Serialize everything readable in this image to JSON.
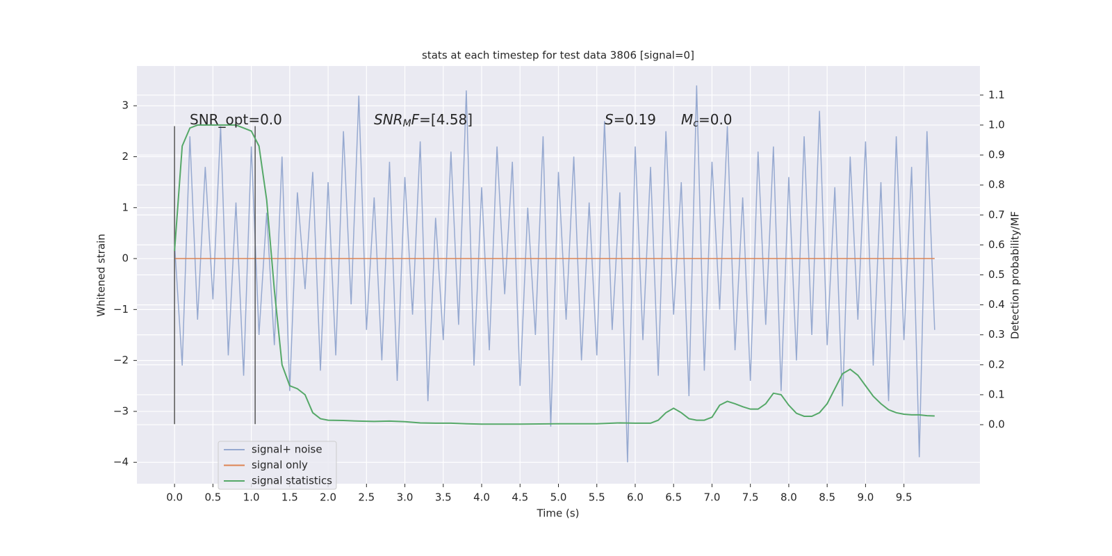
{
  "chart_data": {
    "type": "line",
    "title": "stats at each timestep for test data 3806 [signal=0]",
    "xlabel": "Time (s)",
    "ylabel": "Whitened strain",
    "y2label": "Detection probability/MF",
    "grid": true,
    "legend": "lower left",
    "xlim": [
      -0.49,
      10.49
    ],
    "ylim": [
      -4.42,
      3.78
    ],
    "y2lim": [
      -0.197,
      1.197
    ],
    "xticks": [
      {
        "value": 0,
        "label": "0.0"
      },
      {
        "value": 0.5,
        "label": "0.5"
      },
      {
        "value": 1,
        "label": "1.0"
      },
      {
        "value": 1.5,
        "label": "1.5"
      },
      {
        "value": 2,
        "label": "2.0"
      },
      {
        "value": 2.5,
        "label": "2.5"
      },
      {
        "value": 3,
        "label": "3.0"
      },
      {
        "value": 3.5,
        "label": "3.5"
      },
      {
        "value": 4,
        "label": "4.0"
      },
      {
        "value": 4.5,
        "label": "4.5"
      },
      {
        "value": 5,
        "label": "5.0"
      },
      {
        "value": 5.5,
        "label": "5.5"
      },
      {
        "value": 6,
        "label": "6.0"
      },
      {
        "value": 6.5,
        "label": "6.5"
      },
      {
        "value": 7,
        "label": "7.0"
      },
      {
        "value": 7.5,
        "label": "7.5"
      },
      {
        "value": 8,
        "label": "8.0"
      },
      {
        "value": 8.5,
        "label": "8.5"
      },
      {
        "value": 9,
        "label": "9.0"
      },
      {
        "value": 9.5,
        "label": "9.5"
      }
    ],
    "yticks": [
      {
        "value": -4,
        "label": "−4"
      },
      {
        "value": -3,
        "label": "−3"
      },
      {
        "value": -2,
        "label": "−2"
      },
      {
        "value": -1,
        "label": "−1"
      },
      0,
      1,
      2,
      3
    ],
    "y2ticks": [
      {
        "value": 0,
        "label": "0.0"
      },
      0.1,
      0.2,
      0.3,
      0.4,
      0.5,
      0.6,
      0.7,
      0.8,
      0.9,
      {
        "value": 1,
        "label": "1.0"
      },
      1.1
    ],
    "annotations": [
      [
        {
          "text": "SNR_opt=0.0"
        }
      ],
      [
        {
          "text": "SNR",
          "italic": true
        },
        {
          "text": "M",
          "italic": true,
          "sub": true
        },
        {
          "text": "F",
          "italic": true
        },
        {
          "text": "=[4.58]"
        }
      ],
      [
        {
          "text": "S",
          "italic": true
        },
        {
          "text": "=0.19"
        }
      ],
      [
        {
          "text": "M",
          "italic": true
        },
        {
          "text": "c",
          "italic": true,
          "sub": true
        },
        {
          "text": "=0.0"
        }
      ]
    ],
    "markers": {
      "x": [
        0,
        1.05
      ],
      "ymin": -3.25,
      "ymax": 2.6,
      "color": "#555555"
    },
    "x": [
      0.0,
      0.1,
      0.2,
      0.3,
      0.4,
      0.5,
      0.6,
      0.7,
      0.8,
      0.9,
      1.0,
      1.1,
      1.2,
      1.3,
      1.4,
      1.5,
      1.6,
      1.7,
      1.8,
      1.9,
      2.0,
      2.1,
      2.2,
      2.3,
      2.4,
      2.5,
      2.6,
      2.7,
      2.8,
      2.9,
      3.0,
      3.1,
      3.2,
      3.3,
      3.4,
      3.5,
      3.6,
      3.7,
      3.8,
      3.9,
      4.0,
      4.1,
      4.2,
      4.3,
      4.4,
      4.5,
      4.6,
      4.7,
      4.8,
      4.9,
      5.0,
      5.1,
      5.2,
      5.3,
      5.4,
      5.5,
      5.6,
      5.7,
      5.8,
      5.9,
      6.0,
      6.1,
      6.2,
      6.3,
      6.4,
      6.5,
      6.6,
      6.7,
      6.8,
      6.9,
      7.0,
      7.1,
      7.2,
      7.3,
      7.4,
      7.5,
      7.6,
      7.7,
      7.8,
      7.9,
      8.0,
      8.1,
      8.2,
      8.3,
      8.4,
      8.5,
      8.6,
      8.7,
      8.8,
      8.9,
      9.0,
      9.1,
      9.2,
      9.3,
      9.4,
      9.5,
      9.6,
      9.7,
      9.8,
      9.9
    ],
    "series": [
      {
        "name": "signal+ noise",
        "color": "#96a9d0",
        "values": [
          0.3,
          -2.1,
          2.4,
          -1.2,
          1.8,
          -0.8,
          2.6,
          -1.9,
          1.1,
          -2.3,
          2.2,
          -1.5,
          0.9,
          -1.7,
          2.0,
          -2.6,
          1.3,
          -0.6,
          1.7,
          -2.2,
          1.5,
          -1.9,
          2.5,
          -0.9,
          3.2,
          -1.4,
          1.2,
          -2.0,
          1.9,
          -2.4,
          1.6,
          -1.1,
          2.3,
          -2.8,
          0.8,
          -1.6,
          2.1,
          -1.3,
          3.3,
          -2.1,
          1.4,
          -1.8,
          2.2,
          -0.7,
          1.9,
          -2.5,
          1.0,
          -1.5,
          2.4,
          -3.3,
          1.7,
          -1.2,
          2.0,
          -2.0,
          1.1,
          -1.9,
          2.7,
          -1.4,
          1.3,
          -4.0,
          2.2,
          -1.6,
          1.8,
          -2.3,
          2.5,
          -1.1,
          1.5,
          -2.7,
          3.4,
          -2.2,
          1.9,
          -1.0,
          2.6,
          -1.8,
          1.2,
          -2.4,
          2.1,
          -1.3,
          2.2,
          -2.6,
          1.6,
          -2.0,
          2.4,
          -1.5,
          2.9,
          -1.7,
          1.4,
          -2.9,
          2.0,
          -1.2,
          2.3,
          -2.1,
          1.5,
          -2.8,
          2.4,
          -1.6,
          1.8,
          -3.9,
          2.5,
          -1.4
        ]
      },
      {
        "name": "signal only",
        "color": "#dd8452",
        "values": [
          0,
          0,
          0,
          0,
          0,
          0,
          0,
          0,
          0,
          0,
          0,
          0,
          0,
          0,
          0,
          0,
          0,
          0,
          0,
          0,
          0,
          0,
          0,
          0,
          0,
          0,
          0,
          0,
          0,
          0,
          0,
          0,
          0,
          0,
          0,
          0,
          0,
          0,
          0,
          0,
          0,
          0,
          0,
          0,
          0,
          0,
          0,
          0,
          0,
          0,
          0,
          0,
          0,
          0,
          0,
          0,
          0,
          0,
          0,
          0,
          0,
          0,
          0,
          0,
          0,
          0,
          0,
          0,
          0,
          0,
          0,
          0,
          0,
          0,
          0,
          0,
          0,
          0,
          0,
          0,
          0,
          0,
          0,
          0,
          0,
          0,
          0,
          0,
          0,
          0,
          0,
          0,
          0,
          0,
          0,
          0,
          0,
          0,
          0,
          0
        ]
      },
      {
        "name": "signal statistics",
        "color": "#55a868",
        "axis": "y2",
        "x": [
          0.0,
          0.1,
          0.2,
          0.3,
          0.4,
          0.5,
          0.6,
          0.7,
          0.8,
          0.9,
          1.0,
          1.1,
          1.2,
          1.3,
          1.4,
          1.5,
          1.6,
          1.7,
          1.8,
          1.9,
          2.0,
          2.2,
          2.4,
          2.6,
          2.8,
          3.0,
          3.2,
          3.4,
          3.6,
          3.8,
          4.0,
          4.5,
          5.0,
          5.5,
          5.8,
          6.0,
          6.2,
          6.3,
          6.4,
          6.5,
          6.6,
          6.7,
          6.8,
          6.9,
          7.0,
          7.1,
          7.2,
          7.3,
          7.4,
          7.5,
          7.6,
          7.7,
          7.8,
          7.9,
          8.0,
          8.1,
          8.2,
          8.3,
          8.4,
          8.5,
          8.6,
          8.7,
          8.8,
          8.9,
          9.0,
          9.1,
          9.2,
          9.3,
          9.4,
          9.5,
          9.6,
          9.7,
          9.8,
          9.9
        ],
        "values": [
          0.58,
          0.93,
          0.99,
          1.0,
          1.0,
          1.0,
          1.0,
          1.0,
          1.0,
          0.99,
          0.98,
          0.93,
          0.75,
          0.45,
          0.2,
          0.13,
          0.12,
          0.1,
          0.04,
          0.02,
          0.015,
          0.014,
          0.012,
          0.011,
          0.012,
          0.01,
          0.006,
          0.005,
          0.005,
          0.003,
          0.002,
          0.002,
          0.003,
          0.003,
          0.006,
          0.005,
          0.005,
          0.015,
          0.04,
          0.055,
          0.04,
          0.02,
          0.015,
          0.015,
          0.025,
          0.065,
          0.078,
          0.07,
          0.06,
          0.052,
          0.052,
          0.07,
          0.105,
          0.1,
          0.065,
          0.038,
          0.028,
          0.028,
          0.04,
          0.07,
          0.12,
          0.17,
          0.185,
          0.165,
          0.13,
          0.095,
          0.07,
          0.05,
          0.04,
          0.035,
          0.033,
          0.033,
          0.03,
          0.029
        ]
      }
    ]
  }
}
